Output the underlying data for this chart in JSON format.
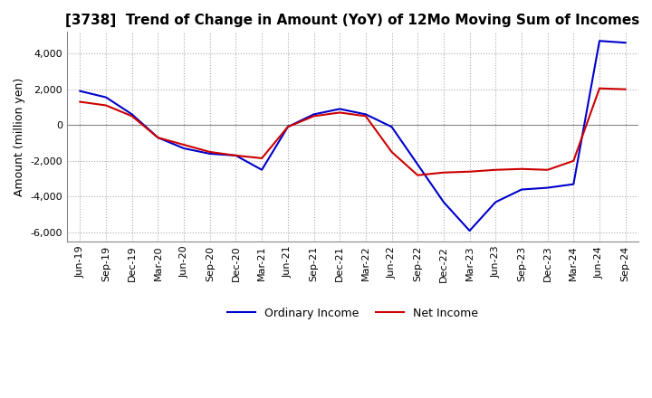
{
  "title": "[3738]  Trend of Change in Amount (YoY) of 12Mo Moving Sum of Incomes",
  "ylabel": "Amount (million yen)",
  "ylim": [
    -6500,
    5200
  ],
  "yticks": [
    -6000,
    -4000,
    -2000,
    0,
    2000,
    4000
  ],
  "background_color": "#ffffff",
  "grid_color": "#aaaaaa",
  "grid_style": "dotted",
  "x_labels": [
    "Jun-19",
    "Sep-19",
    "Dec-19",
    "Mar-20",
    "Jun-20",
    "Sep-20",
    "Dec-20",
    "Mar-21",
    "Jun-21",
    "Sep-21",
    "Dec-21",
    "Mar-22",
    "Jun-22",
    "Sep-22",
    "Dec-22",
    "Mar-23",
    "Jun-23",
    "Sep-23",
    "Dec-23",
    "Mar-24",
    "Jun-24",
    "Sep-24"
  ],
  "ordinary_income": [
    1900,
    1550,
    600,
    -700,
    -1300,
    -1600,
    -1700,
    -2500,
    -100,
    600,
    900,
    600,
    -100,
    -2200,
    -4300,
    -5900,
    -4300,
    -3600,
    -3500,
    -3300,
    4700,
    4600
  ],
  "net_income": [
    1300,
    1100,
    500,
    -700,
    -1100,
    -1500,
    -1700,
    -1850,
    -100,
    500,
    700,
    500,
    -1500,
    -2800,
    -2650,
    -2600,
    -2500,
    -2450,
    -2500,
    -2000,
    2050,
    2000
  ],
  "ordinary_color": "#0000cc",
  "net_color": "#cc0000",
  "line_width": 1.5
}
